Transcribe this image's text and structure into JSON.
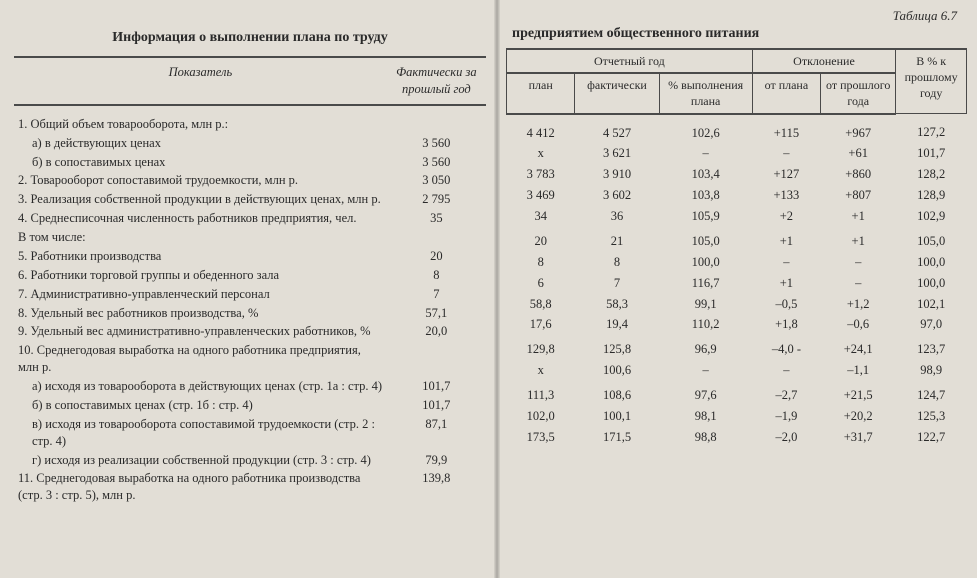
{
  "doc": {
    "table_label": "Таблица 6.7",
    "left_title": "Информация о выполнении плана по труду",
    "right_title": "предприятием общественного питания",
    "left_headers": {
      "indicator": "Показатель",
      "fact_prev": "Фактически за прошлый год"
    },
    "right_headers": {
      "report_year": "Отчетный год",
      "plan": "план",
      "fact": "фактически",
      "pct_plan": "% выполнения плана",
      "deviation": "Отклонение",
      "from_plan": "от плана",
      "from_prev": "от прошлого года",
      "pct_prev": "В % к прошлому году"
    }
  },
  "rows": [
    {
      "label": "1. Общий объем товарооборота, млн р.:",
      "prev": "",
      "plan": "4 412",
      "fact": "4 527",
      "pct": "102,6",
      "dplan": "+115",
      "dprev": "+967",
      "pprev": "127,2"
    },
    {
      "label": "а) в действующих ценах",
      "indent": 1,
      "prev": "3 560",
      "plan": "х",
      "fact": "3 621",
      "pct": "–",
      "dplan": "–",
      "dprev": "+61",
      "pprev": "101,7"
    },
    {
      "label": "б) в сопоставимых ценах",
      "indent": 1,
      "prev": "3 560",
      "plan": "3 783",
      "fact": "3 910",
      "pct": "103,4",
      "dplan": "+127",
      "dprev": "+860",
      "pprev": "128,2"
    },
    {
      "label": "2. Товарооборот сопоставимой трудоемкости, млн р.",
      "prev": "3 050",
      "plan": "3 469",
      "fact": "3 602",
      "pct": "103,8",
      "dplan": "+133",
      "dprev": "+807",
      "pprev": "128,9"
    },
    {
      "label": "3. Реализация собственной продукции в действующих ценах, млн р.",
      "prev": "2 795",
      "plan": "34",
      "fact": "36",
      "pct": "105,9",
      "dplan": "+2",
      "dprev": "+1",
      "pprev": "102,9"
    },
    {
      "label": "4. Среднесписочная численность работников предприятия, чел.",
      "prev": "35",
      "plan": "",
      "fact": "",
      "pct": "",
      "dplan": "",
      "dprev": "",
      "pprev": ""
    },
    {
      "label": "В том числе:",
      "prev": "",
      "plan": "20",
      "fact": "21",
      "pct": "105,0",
      "dplan": "+1",
      "dprev": "+1",
      "pprev": "105,0"
    },
    {
      "label": "5. Работники производства",
      "prev": "20",
      "plan": "8",
      "fact": "8",
      "pct": "100,0",
      "dplan": "–",
      "dprev": "–",
      "pprev": "100,0"
    },
    {
      "label": "6. Работники торговой группы и обеденного зала",
      "prev": "8",
      "plan": "6",
      "fact": "7",
      "pct": "116,7",
      "dplan": "+1",
      "dprev": "–",
      "pprev": "100,0"
    },
    {
      "label": "7. Административно-управленческий персонал",
      "prev": "7",
      "plan": "58,8",
      "fact": "58,3",
      "pct": "99,1",
      "dplan": "–0,5",
      "dprev": "+1,2",
      "pprev": "102,1"
    },
    {
      "label": "8. Удельный вес работников производства, %",
      "prev": "57,1",
      "plan": "17,6",
      "fact": "19,4",
      "pct": "110,2",
      "dplan": "+1,8",
      "dprev": "–0,6",
      "pprev": "97,0"
    },
    {
      "label": "9. Удельный вес административно-управленческих работников, %",
      "prev": "20,0",
      "plan": "",
      "fact": "",
      "pct": "",
      "dplan": "",
      "dprev": "",
      "pprev": ""
    },
    {
      "label": "10. Среднегодовая выработка на одного работника предприятия, млн р.",
      "prev": "",
      "plan": "129,8",
      "fact": "125,8",
      "pct": "96,9",
      "dplan": "–4,0 -",
      "dprev": "+24,1",
      "pprev": "123,7"
    },
    {
      "label": "а) исходя из товарооборота в действующих ценах (стр. 1а : стр. 4)",
      "indent": 1,
      "prev": "101,7",
      "plan": "х",
      "fact": "100,6",
      "pct": "–",
      "dplan": "–",
      "dprev": "–1,1",
      "pprev": "98,9"
    },
    {
      "label": "б) в сопоставимых ценах (стр. 1б : стр. 4)",
      "indent": 1,
      "prev": "101,7",
      "plan": "",
      "fact": "",
      "pct": "",
      "dplan": "",
      "dprev": "",
      "pprev": ""
    },
    {
      "label": "в) исходя из товарооборота сопоставимой трудоемкости (стр. 2 : стр. 4)",
      "indent": 1,
      "prev": "87,1",
      "plan": "111,3",
      "fact": "108,6",
      "pct": "97,6",
      "dplan": "–2,7",
      "dprev": "+21,5",
      "pprev": "124,7"
    },
    {
      "label": "г) исходя из реализации собственной продукции (стр. 3 : стр. 4)",
      "indent": 1,
      "prev": "79,9",
      "plan": "102,0",
      "fact": "100,1",
      "pct": "98,1",
      "dplan": "–1,9",
      "dprev": "+20,2",
      "pprev": "125,3"
    },
    {
      "label": "11. Среднегодовая выработка на одного работника производства (стр. 3 : стр. 5), млн р.",
      "prev": "139,8",
      "plan": "173,5",
      "fact": "171,5",
      "pct": "98,8",
      "dplan": "–2,0",
      "dprev": "+31,7",
      "pprev": "122,7"
    }
  ],
  "style": {
    "background": "#e2ded6",
    "text_color": "#2a2a2a",
    "rule_color": "#4a4a4a",
    "body_fontsize": 12.5,
    "header_fontsize": 14,
    "font_family": "Times New Roman"
  }
}
